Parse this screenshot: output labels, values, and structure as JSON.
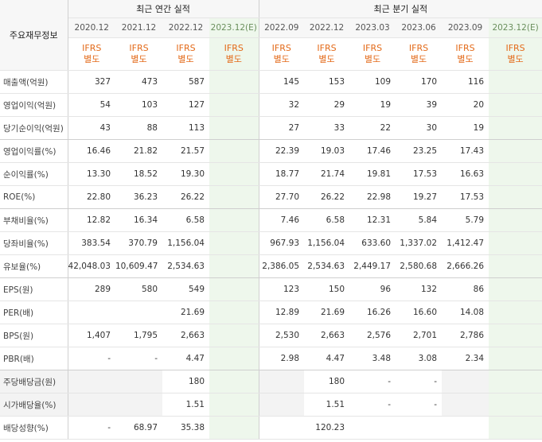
{
  "header": {
    "row_label": "주요재무정보",
    "annual_title": "최근 연간 실적",
    "quarter_title": "최근 분기 실적"
  },
  "periods": {
    "annual": [
      "2020.12",
      "2021.12",
      "2022.12",
      "2023.12(E)"
    ],
    "quarter": [
      "2022.09",
      "2022.12",
      "2023.03",
      "2023.06",
      "2023.09",
      "2023.12(E)"
    ]
  },
  "basis": {
    "line1": "IFRS",
    "line2": "별도"
  },
  "rows": [
    {
      "label": "매출액(억원)",
      "annual": [
        "327",
        "473",
        "587",
        ""
      ],
      "quarter": [
        "145",
        "153",
        "109",
        "170",
        "116",
        ""
      ]
    },
    {
      "label": "영업이익(억원)",
      "annual": [
        "54",
        "103",
        "127",
        ""
      ],
      "quarter": [
        "32",
        "29",
        "19",
        "39",
        "20",
        ""
      ]
    },
    {
      "label": "당기순이익(억원)",
      "annual": [
        "43",
        "88",
        "113",
        ""
      ],
      "quarter": [
        "27",
        "33",
        "22",
        "30",
        "19",
        ""
      ]
    },
    {
      "label": "영업이익률(%)",
      "annual": [
        "16.46",
        "21.82",
        "21.57",
        ""
      ],
      "quarter": [
        "22.39",
        "19.03",
        "17.46",
        "23.25",
        "17.43",
        ""
      ]
    },
    {
      "label": "순이익률(%)",
      "annual": [
        "13.30",
        "18.52",
        "19.30",
        ""
      ],
      "quarter": [
        "18.77",
        "21.74",
        "19.81",
        "17.53",
        "16.63",
        ""
      ]
    },
    {
      "label": "ROE(%)",
      "annual": [
        "22.80",
        "36.23",
        "26.22",
        ""
      ],
      "quarter": [
        "27.70",
        "26.22",
        "22.98",
        "19.27",
        "17.53",
        ""
      ]
    },
    {
      "label": "부채비율(%)",
      "annual": [
        "12.82",
        "16.34",
        "6.58",
        ""
      ],
      "quarter": [
        "7.46",
        "6.58",
        "12.31",
        "5.84",
        "5.79",
        ""
      ]
    },
    {
      "label": "당좌비율(%)",
      "annual": [
        "383.54",
        "370.79",
        "1,156.04",
        ""
      ],
      "quarter": [
        "967.93",
        "1,156.04",
        "633.60",
        "1,337.02",
        "1,412.47",
        ""
      ]
    },
    {
      "label": "유보율(%)",
      "annual": [
        "42,048.03",
        "10,609.47",
        "2,534.63",
        ""
      ],
      "quarter": [
        "2,386.05",
        "2,534.63",
        "2,449.17",
        "2,580.68",
        "2,666.26",
        ""
      ]
    },
    {
      "label": "EPS(원)",
      "annual": [
        "289",
        "580",
        "549",
        ""
      ],
      "quarter": [
        "123",
        "150",
        "96",
        "132",
        "86",
        ""
      ]
    },
    {
      "label": "PER(배)",
      "annual": [
        "",
        "",
        "21.69",
        ""
      ],
      "quarter": [
        "12.89",
        "21.69",
        "16.26",
        "16.60",
        "14.08",
        ""
      ]
    },
    {
      "label": "BPS(원)",
      "annual": [
        "1,407",
        "1,795",
        "2,663",
        ""
      ],
      "quarter": [
        "2,530",
        "2,663",
        "2,576",
        "2,701",
        "2,786",
        ""
      ]
    },
    {
      "label": "PBR(배)",
      "annual": [
        "-",
        "-",
        "4.47",
        ""
      ],
      "quarter": [
        "2.98",
        "4.47",
        "3.48",
        "3.08",
        "2.34",
        ""
      ]
    },
    {
      "label": "주당배당금(원)",
      "annual": [
        "",
        "",
        "180",
        ""
      ],
      "quarter": [
        "",
        "180",
        "-",
        "-",
        "",
        ""
      ]
    },
    {
      "label": "시가배당율(%)",
      "annual": [
        "",
        "",
        "1.51",
        ""
      ],
      "quarter": [
        "",
        "1.51",
        "-",
        "-",
        "",
        ""
      ]
    },
    {
      "label": "배당성향(%)",
      "annual": [
        "-",
        "68.97",
        "35.38",
        ""
      ],
      "quarter": [
        "",
        "120.23",
        "",
        "",
        "",
        ""
      ]
    }
  ]
}
